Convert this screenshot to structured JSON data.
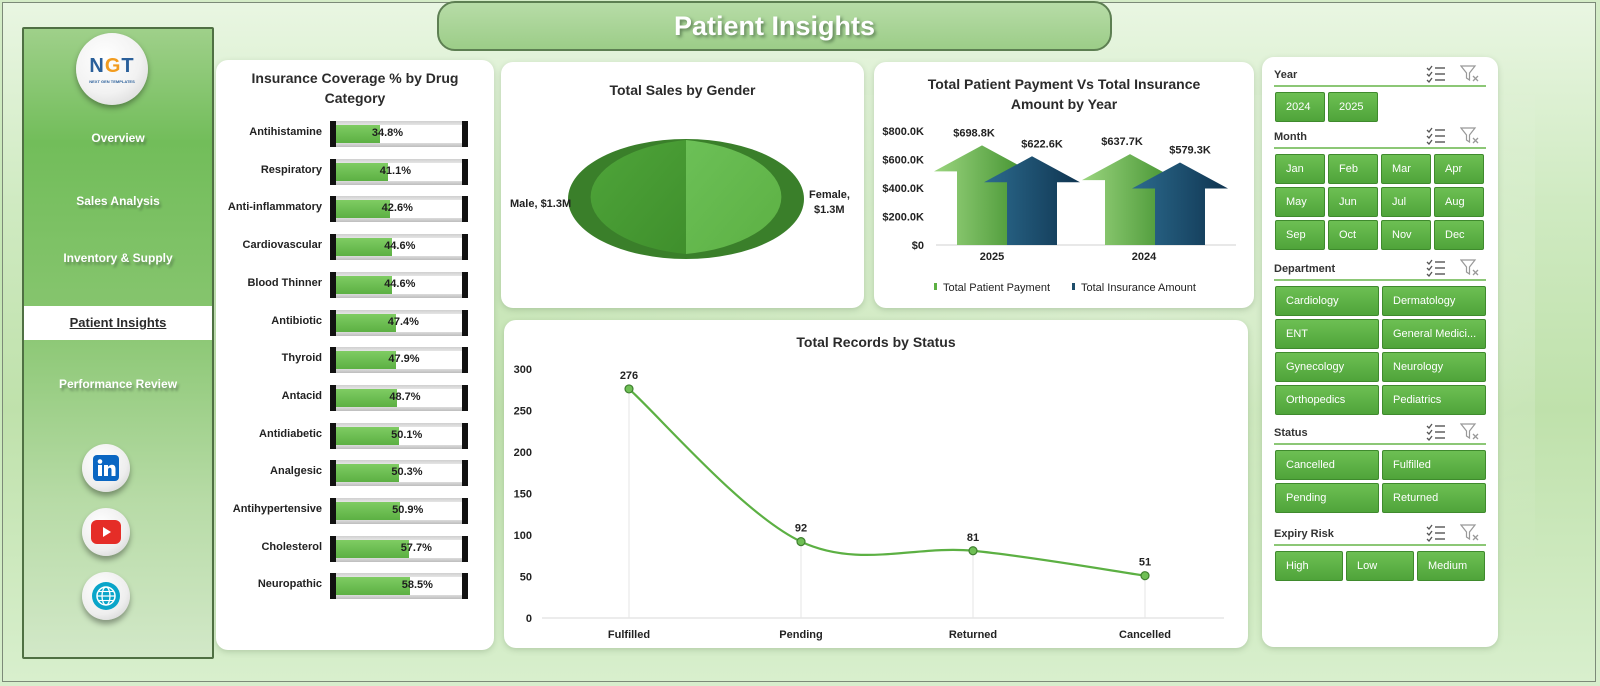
{
  "title": "Patient Insights",
  "logo": {
    "text_main": "NGT",
    "text_sub": "NEXT GEN TEMPLATES"
  },
  "nav": {
    "items": [
      "Overview",
      "Sales Analysis",
      "Inventory & Supply",
      "Patient Insights",
      "Performance Review"
    ],
    "active": "Patient Insights"
  },
  "social": [
    "linkedin-icon",
    "youtube-icon",
    "globe-icon"
  ],
  "insurance": {
    "title_line1": "Insurance  Coverage  % by Drug",
    "title_line2": "Category",
    "rows": [
      {
        "label": "Antihistamine",
        "value": 34.8,
        "text": "34.8%"
      },
      {
        "label": "Respiratory",
        "value": 41.1,
        "text": "41.1%"
      },
      {
        "label": "Anti-inflammatory",
        "value": 42.6,
        "text": "42.6%"
      },
      {
        "label": "Cardiovascular",
        "value": 44.6,
        "text": "44.6%"
      },
      {
        "label": "Blood Thinner",
        "value": 44.6,
        "text": "44.6%"
      },
      {
        "label": "Antibiotic",
        "value": 47.4,
        "text": "47.4%"
      },
      {
        "label": "Thyroid",
        "value": 47.9,
        "text": "47.9%"
      },
      {
        "label": "Antacid",
        "value": 48.7,
        "text": "48.7%"
      },
      {
        "label": "Antidiabetic",
        "value": 50.1,
        "text": "50.1%"
      },
      {
        "label": "Analgesic",
        "value": 50.3,
        "text": "50.3%"
      },
      {
        "label": "Antihypertensive",
        "value": 50.9,
        "text": "50.9%"
      },
      {
        "label": "Cholesterol",
        "value": 57.7,
        "text": "57.7%"
      },
      {
        "label": "Neuropathic",
        "value": 58.5,
        "text": "58.5%"
      }
    ]
  },
  "gender": {
    "title": "Total Sales by Gender",
    "male_label": "Male, $1.3M",
    "female_label_1": "Female,",
    "female_label_2": "$1.3M"
  },
  "payment": {
    "title_line1": "Total Patient Payment Vs Total Insurance",
    "title_line2": "Amount by Year",
    "legend_patient": "Total Patient Payment",
    "legend_insurance": "Total Insurance Amount"
  },
  "status_chart": {
    "title": "Total Records by Status"
  },
  "chart_data": [
    {
      "type": "bar",
      "title": "Insurance  Coverage  % by Drug Category",
      "categories": [
        "Antihistamine",
        "Respiratory",
        "Anti-inflammatory",
        "Cardiovascular",
        "Blood Thinner",
        "Antibiotic",
        "Thyroid",
        "Antacid",
        "Antidiabetic",
        "Analgesic",
        "Antihypertensive",
        "Cholesterol",
        "Neuropathic"
      ],
      "values": [
        34.8,
        41.1,
        42.6,
        44.6,
        44.6,
        47.4,
        47.9,
        48.7,
        50.1,
        50.3,
        50.9,
        57.7,
        58.5
      ],
      "ylim": [
        0,
        100
      ]
    },
    {
      "type": "pie",
      "title": "Total Sales by Gender",
      "categories": [
        "Male",
        "Female"
      ],
      "values": [
        1.3,
        1.3
      ],
      "labels": [
        "Male, $1.3M",
        "Female, $1.3M"
      ]
    },
    {
      "type": "bar",
      "title": "Total Patient Payment Vs Total Insurance Amount by Year",
      "categories": [
        "2025",
        "2024"
      ],
      "series": [
        {
          "name": "Total Patient Payment",
          "values": [
            698.8,
            637.7
          ],
          "labels": [
            "$698.8K",
            "$637.7K"
          ],
          "color": "#5cb043"
        },
        {
          "name": "Total Insurance Amount",
          "values": [
            622.6,
            579.3
          ],
          "labels": [
            "$622.6K",
            "$579.3K"
          ],
          "color": "#1f4e6b"
        }
      ],
      "ylim": [
        0,
        800
      ],
      "yticks": [
        0,
        200,
        400,
        600,
        800
      ],
      "ytick_labels": [
        "$0",
        "$200.0K",
        "$400.0K",
        "$600.0K",
        "$800.0K"
      ],
      "legend": "bottom"
    },
    {
      "type": "line",
      "title": "Total Records by Status",
      "categories": [
        "Fulfilled",
        "Pending",
        "Returned",
        "Cancelled"
      ],
      "values": [
        276,
        92,
        81,
        51
      ],
      "ylim": [
        0,
        300
      ],
      "yticks": [
        0,
        50,
        100,
        150,
        200,
        250,
        300
      ]
    }
  ],
  "slicers": {
    "year": {
      "label": "Year",
      "options": [
        "2024",
        "2025"
      ]
    },
    "month": {
      "label": "Month",
      "options": [
        "Jan",
        "Feb",
        "Mar",
        "Apr",
        "May",
        "Jun",
        "Jul",
        "Aug",
        "Sep",
        "Oct",
        "Nov",
        "Dec"
      ]
    },
    "department": {
      "label": "Department",
      "options": [
        "Cardiology",
        "Dermatology",
        "ENT",
        "General Medici...",
        "Gynecology",
        "Neurology",
        "Orthopedics",
        "Pediatrics"
      ]
    },
    "status": {
      "label": "Status",
      "options": [
        "Cancelled",
        "Fulfilled",
        "Pending",
        "Returned"
      ]
    },
    "expiry": {
      "label": "Expiry Risk",
      "options": [
        "High",
        "Low",
        "Medium"
      ]
    }
  },
  "colors": {
    "accent": "#5cb043",
    "navy": "#1f4e6b",
    "bg": "#c4e6b3"
  }
}
